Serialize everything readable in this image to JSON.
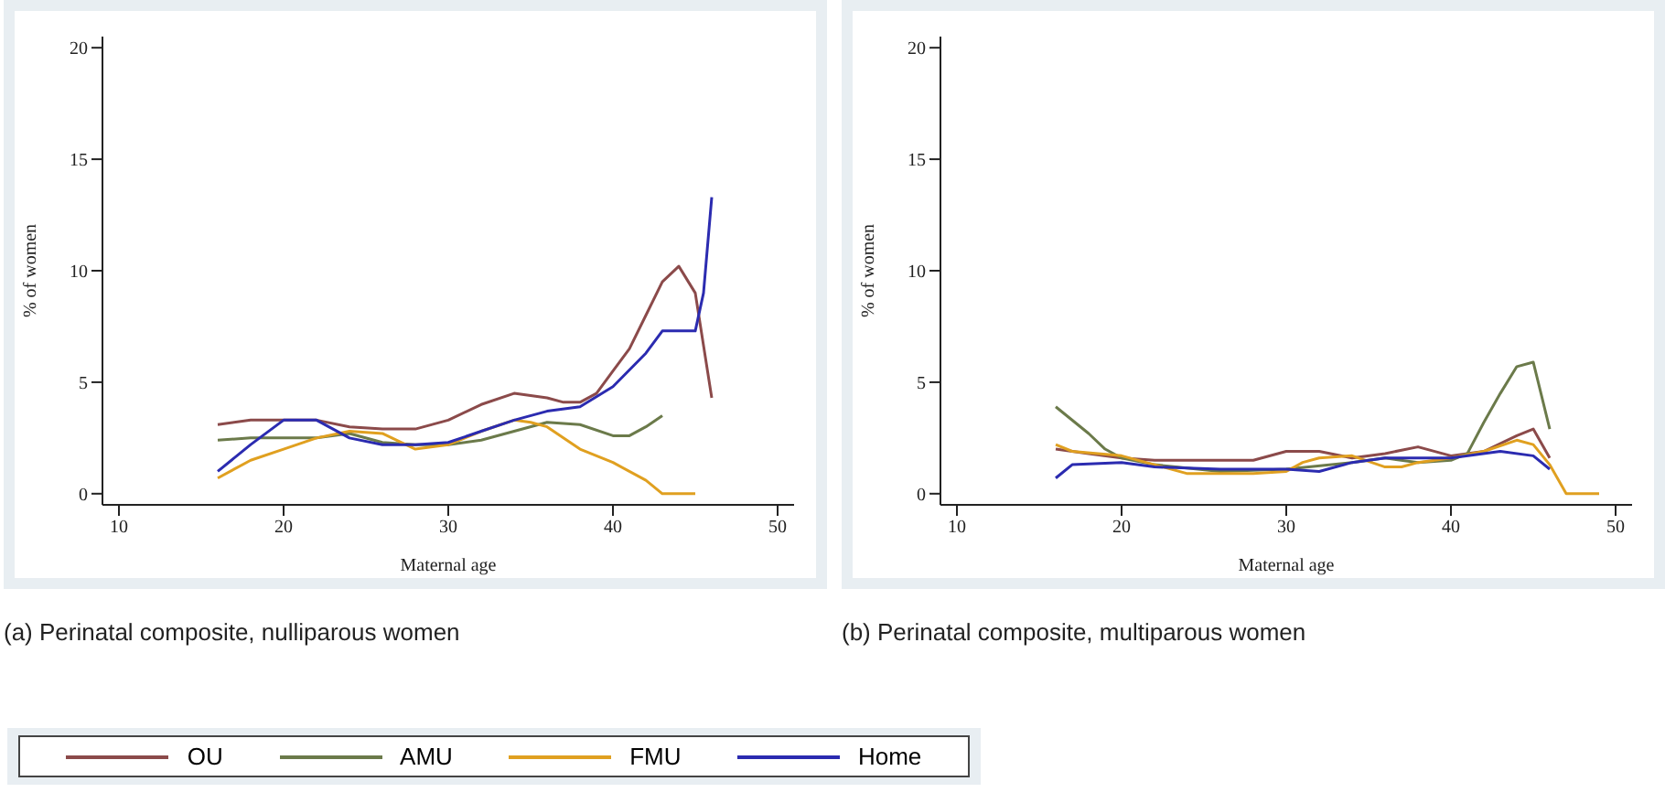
{
  "chart_data": [
    {
      "type": "line",
      "title": "(a) Perinatal composite, nulliparous women",
      "xlabel": "Maternal age",
      "ylabel": "% of women",
      "xlim": [
        9,
        51
      ],
      "xticks": [
        10,
        20,
        30,
        40,
        50
      ],
      "ylim": [
        -0.5,
        20.5
      ],
      "yticks": [
        0,
        5,
        10,
        15,
        20
      ],
      "legend": "bottom",
      "series": [
        {
          "name": "OU",
          "color": "#8b4a4a",
          "x": [
            16,
            18,
            20,
            22,
            24,
            26,
            28,
            30,
            32,
            34,
            36,
            37,
            38,
            39,
            40,
            41,
            42,
            43,
            44,
            45,
            46
          ],
          "values": [
            3.1,
            3.3,
            3.3,
            3.3,
            3.0,
            2.9,
            2.9,
            3.3,
            4.0,
            4.5,
            4.3,
            4.1,
            4.1,
            4.5,
            5.5,
            6.5,
            8.0,
            9.5,
            10.2,
            9.0,
            4.3
          ]
        },
        {
          "name": "AMU",
          "color": "#6b7a4a",
          "x": [
            16,
            18,
            22,
            24,
            26,
            28,
            30,
            32,
            34,
            36,
            38,
            40,
            41,
            42,
            43
          ],
          "values": [
            2.4,
            2.5,
            2.5,
            2.7,
            2.3,
            2.2,
            2.2,
            2.4,
            2.8,
            3.2,
            3.1,
            2.6,
            2.6,
            3.0,
            3.5
          ]
        },
        {
          "name": "FMU",
          "color": "#e0a020",
          "x": [
            16,
            18,
            20,
            22,
            24,
            26,
            28,
            30,
            32,
            34,
            35,
            36,
            38,
            40,
            42,
            43,
            45
          ],
          "values": [
            0.7,
            1.5,
            2.0,
            2.5,
            2.8,
            2.7,
            2.0,
            2.2,
            2.8,
            3.3,
            3.2,
            3.0,
            2.0,
            1.4,
            0.6,
            0,
            0
          ]
        },
        {
          "name": "Home",
          "color": "#2b2bb0",
          "x": [
            16,
            18,
            20,
            22,
            24,
            26,
            28,
            30,
            32,
            34,
            36,
            38,
            40,
            42,
            43,
            45,
            45.5,
            46
          ],
          "values": [
            1.0,
            2.2,
            3.3,
            3.3,
            2.5,
            2.2,
            2.2,
            2.3,
            2.8,
            3.3,
            3.7,
            3.9,
            4.8,
            6.3,
            7.3,
            7.3,
            9.0,
            13.3
          ]
        }
      ]
    },
    {
      "type": "line",
      "title": "(b) Perinatal composite, multiparous women",
      "xlabel": "Maternal age",
      "ylabel": "% of women",
      "xlim": [
        9,
        51
      ],
      "xticks": [
        10,
        20,
        30,
        40,
        50
      ],
      "ylim": [
        -0.5,
        20.5
      ],
      "yticks": [
        0,
        5,
        10,
        15,
        20
      ],
      "series": [
        {
          "color": "#8b4a4a",
          "x": [
            16,
            18,
            20,
            22,
            26,
            28,
            30,
            32,
            34,
            36,
            38,
            40,
            42,
            44,
            45,
            46
          ],
          "values": [
            2.0,
            1.8,
            1.6,
            1.5,
            1.5,
            1.5,
            1.9,
            1.9,
            1.6,
            1.8,
            2.1,
            1.7,
            1.9,
            2.6,
            2.9,
            1.6
          ]
        },
        {
          "color": "#6b7a4a",
          "x": [
            16,
            18,
            19,
            20,
            22,
            26,
            30,
            34,
            36,
            38,
            40,
            41,
            42,
            43,
            44,
            45,
            46
          ],
          "values": [
            3.9,
            2.7,
            2.0,
            1.6,
            1.3,
            1.0,
            1.1,
            1.4,
            1.6,
            1.4,
            1.5,
            1.8,
            3.2,
            4.5,
            5.7,
            5.9,
            2.9
          ]
        },
        {
          "color": "#e0a020",
          "x": [
            16,
            17,
            20,
            22,
            24,
            28,
            30,
            31,
            32,
            34,
            36,
            37,
            38,
            40,
            42,
            44,
            45,
            46,
            47,
            49
          ],
          "values": [
            2.2,
            1.9,
            1.7,
            1.3,
            0.9,
            0.9,
            1.0,
            1.4,
            1.6,
            1.7,
            1.2,
            1.2,
            1.4,
            1.6,
            1.9,
            2.4,
            2.2,
            1.3,
            0,
            0
          ]
        },
        {
          "color": "#2b2bb0",
          "x": [
            16,
            17,
            20,
            22,
            26,
            30,
            32,
            34,
            36,
            40,
            43,
            45,
            46
          ],
          "values": [
            0.7,
            1.3,
            1.4,
            1.2,
            1.1,
            1.1,
            1.0,
            1.4,
            1.6,
            1.6,
            1.9,
            1.7,
            1.1
          ]
        }
      ]
    }
  ]
}
